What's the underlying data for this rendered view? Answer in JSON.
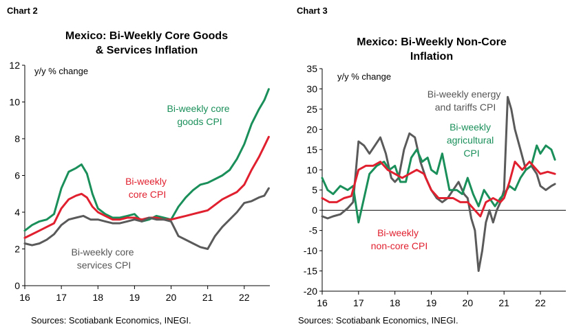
{
  "chart_data": [
    {
      "type": "line",
      "panel_label": "Chart 2",
      "title_line1": "Mexico: Bi-Weekly Core Goods",
      "title_line2": "& Services Inflation",
      "unit_label": "y/y % change",
      "source": "Sources: Scotiabank Economics, INEGI.",
      "x_ticks": [
        "16",
        "17",
        "18",
        "19",
        "20",
        "21",
        "22"
      ],
      "x_tick_values": [
        2016,
        2017,
        2018,
        2019,
        2020,
        2021,
        2022
      ],
      "xlim": [
        2016,
        2022.7
      ],
      "y_ticks": [
        "0",
        "2",
        "4",
        "6",
        "8",
        "10",
        "12"
      ],
      "ylim": [
        0,
        12
      ],
      "series": [
        {
          "name": "Bi-weekly core goods CPI",
          "label_lines": [
            "Bi-weekly core",
            "goods CPI"
          ],
          "color": "#1a8f5a",
          "x": [
            2016.0,
            2016.2,
            2016.4,
            2016.6,
            2016.8,
            2017.0,
            2017.2,
            2017.4,
            2017.55,
            2017.7,
            2017.85,
            2018.0,
            2018.2,
            2018.4,
            2018.6,
            2018.8,
            2019.0,
            2019.2,
            2019.4,
            2019.6,
            2019.8,
            2020.0,
            2020.2,
            2020.4,
            2020.6,
            2020.8,
            2021.0,
            2021.2,
            2021.4,
            2021.6,
            2021.8,
            2022.0,
            2022.2,
            2022.4,
            2022.55,
            2022.67
          ],
          "y": [
            3.0,
            3.3,
            3.5,
            3.6,
            3.9,
            5.3,
            6.2,
            6.4,
            6.6,
            6.1,
            5.0,
            4.2,
            3.9,
            3.7,
            3.7,
            3.8,
            3.9,
            3.5,
            3.6,
            3.8,
            3.7,
            3.6,
            4.3,
            4.8,
            5.2,
            5.5,
            5.6,
            5.8,
            6.0,
            6.3,
            6.9,
            7.7,
            8.8,
            9.6,
            10.1,
            10.7
          ]
        },
        {
          "name": "Bi-weekly core CPI",
          "label_lines": [
            "Bi-weekly",
            "core CPI"
          ],
          "color": "#e0202f",
          "x": [
            2016.0,
            2016.2,
            2016.4,
            2016.6,
            2016.8,
            2017.0,
            2017.2,
            2017.4,
            2017.55,
            2017.7,
            2017.85,
            2018.0,
            2018.2,
            2018.4,
            2018.6,
            2018.8,
            2019.0,
            2019.2,
            2019.4,
            2019.6,
            2019.8,
            2020.0,
            2020.2,
            2020.4,
            2020.6,
            2020.8,
            2021.0,
            2021.2,
            2021.4,
            2021.6,
            2021.8,
            2022.0,
            2022.2,
            2022.4,
            2022.55,
            2022.67
          ],
          "y": [
            2.6,
            2.8,
            3.0,
            3.2,
            3.4,
            4.2,
            4.7,
            4.9,
            5.0,
            4.8,
            4.3,
            4.0,
            3.8,
            3.6,
            3.6,
            3.7,
            3.7,
            3.6,
            3.7,
            3.7,
            3.6,
            3.6,
            3.7,
            3.8,
            3.9,
            4.0,
            4.1,
            4.4,
            4.7,
            4.9,
            5.1,
            5.5,
            6.3,
            7.0,
            7.6,
            8.1
          ]
        },
        {
          "name": "Bi-weekly core services CPI",
          "label_lines": [
            "Bi-weekly core",
            "services CPI"
          ],
          "color": "#5a5a5a",
          "x": [
            2016.0,
            2016.2,
            2016.4,
            2016.6,
            2016.8,
            2017.0,
            2017.2,
            2017.4,
            2017.6,
            2017.8,
            2018.0,
            2018.2,
            2018.4,
            2018.6,
            2018.8,
            2019.0,
            2019.2,
            2019.4,
            2019.6,
            2019.8,
            2020.0,
            2020.2,
            2020.4,
            2020.6,
            2020.8,
            2021.0,
            2021.2,
            2021.4,
            2021.6,
            2021.8,
            2022.0,
            2022.2,
            2022.4,
            2022.55,
            2022.67
          ],
          "y": [
            2.3,
            2.2,
            2.3,
            2.5,
            2.8,
            3.3,
            3.6,
            3.7,
            3.8,
            3.6,
            3.6,
            3.5,
            3.4,
            3.4,
            3.5,
            3.6,
            3.5,
            3.7,
            3.6,
            3.6,
            3.5,
            2.7,
            2.5,
            2.3,
            2.1,
            2.0,
            2.7,
            3.2,
            3.6,
            4.0,
            4.5,
            4.6,
            4.8,
            4.9,
            5.3
          ]
        }
      ]
    },
    {
      "type": "line",
      "panel_label": "Chart 3",
      "title_line1": "Mexico: Bi-Weekly Non-Core",
      "title_line2": "Inflation",
      "unit_label": "y/y % change",
      "source": "Sources: Scotiabank Economics, INEGI.",
      "x_ticks": [
        "16",
        "17",
        "18",
        "19",
        "20",
        "21",
        "22"
      ],
      "x_tick_values": [
        2016,
        2017,
        2018,
        2019,
        2020,
        2021,
        2022
      ],
      "xlim": [
        2016,
        2022.7
      ],
      "y_ticks": [
        "-20",
        "-15",
        "-10",
        "-5",
        "0",
        "5",
        "10",
        "15",
        "20",
        "25",
        "30",
        "35"
      ],
      "ylim": [
        -20,
        35
      ],
      "series": [
        {
          "name": "Bi-weekly energy and tariffs CPI",
          "label_lines": [
            "Bi-weekly energy",
            "and tariffs CPI"
          ],
          "color": "#5a5a5a",
          "x": [
            2016.0,
            2016.15,
            2016.3,
            2016.5,
            2016.7,
            2016.85,
            2017.0,
            2017.15,
            2017.3,
            2017.45,
            2017.6,
            2017.75,
            2017.9,
            2018.0,
            2018.1,
            2018.25,
            2018.4,
            2018.55,
            2018.7,
            2018.85,
            2019.0,
            2019.15,
            2019.3,
            2019.45,
            2019.6,
            2019.75,
            2019.9,
            2020.0,
            2020.1,
            2020.2,
            2020.3,
            2020.4,
            2020.5,
            2020.6,
            2020.7,
            2020.8,
            2020.9,
            2021.0,
            2021.1,
            2021.2,
            2021.3,
            2021.45,
            2021.6,
            2021.75,
            2021.9,
            2022.0,
            2022.15,
            2022.3,
            2022.4
          ],
          "y": [
            -1.5,
            -2.0,
            -1.5,
            -1.0,
            0.5,
            2.0,
            17.0,
            16.0,
            14.0,
            16.0,
            18.0,
            14.0,
            8.0,
            7.0,
            8.0,
            15.0,
            19.0,
            18.0,
            12.0,
            8.0,
            5.0,
            3.0,
            2.0,
            3.0,
            5.0,
            7.0,
            4.0,
            3.0,
            -2.0,
            -5.0,
            -15.0,
            -10.0,
            -3.0,
            0.0,
            -3.0,
            0.0,
            2.0,
            5.0,
            28.0,
            25.0,
            20.0,
            15.0,
            10.0,
            11.0,
            9.0,
            6.0,
            5.0,
            6.0,
            6.5
          ]
        },
        {
          "name": "Bi-weekly agricultural CPI",
          "label_lines": [
            "Bi-weekly",
            "agricultural",
            "CPI"
          ],
          "color": "#1a8f5a",
          "x": [
            2016.0,
            2016.15,
            2016.3,
            2016.5,
            2016.7,
            2016.85,
            2017.0,
            2017.15,
            2017.3,
            2017.5,
            2017.7,
            2017.85,
            2018.0,
            2018.15,
            2018.3,
            2018.45,
            2018.6,
            2018.75,
            2018.9,
            2019.0,
            2019.15,
            2019.3,
            2019.5,
            2019.7,
            2019.85,
            2020.0,
            2020.15,
            2020.3,
            2020.45,
            2020.6,
            2020.75,
            2020.9,
            2021.0,
            2021.15,
            2021.3,
            2021.45,
            2021.6,
            2021.75,
            2021.9,
            2022.0,
            2022.15,
            2022.3,
            2022.4
          ],
          "y": [
            8.0,
            5.0,
            4.0,
            6.0,
            5.0,
            6.0,
            -3.0,
            3.0,
            9.0,
            11.0,
            12.0,
            10.0,
            11.0,
            7.0,
            7.0,
            13.0,
            15.0,
            12.0,
            13.0,
            10.0,
            9.0,
            14.0,
            5.0,
            5.0,
            4.0,
            8.0,
            4.0,
            1.0,
            5.0,
            3.0,
            1.0,
            3.0,
            4.0,
            6.0,
            5.0,
            8.0,
            10.0,
            11.0,
            16.0,
            14.0,
            16.0,
            15.0,
            12.5
          ]
        },
        {
          "name": "Bi-weekly non-core CPI",
          "label_lines": [
            "Bi-weekly",
            "non-core CPI"
          ],
          "color": "#e0202f",
          "x": [
            2016.0,
            2016.2,
            2016.4,
            2016.6,
            2016.8,
            2017.0,
            2017.2,
            2017.4,
            2017.6,
            2017.8,
            2018.0,
            2018.2,
            2018.4,
            2018.6,
            2018.8,
            2019.0,
            2019.2,
            2019.4,
            2019.6,
            2019.8,
            2020.0,
            2020.2,
            2020.35,
            2020.5,
            2020.7,
            2020.9,
            2021.0,
            2021.15,
            2021.3,
            2021.5,
            2021.7,
            2021.9,
            2022.0,
            2022.2,
            2022.4
          ],
          "y": [
            3.0,
            2.0,
            2.0,
            3.0,
            3.5,
            10.0,
            11.0,
            11.0,
            12.0,
            10.0,
            9.0,
            8.0,
            9.0,
            10.0,
            9.0,
            5.0,
            3.0,
            3.0,
            3.0,
            2.0,
            2.0,
            0.0,
            -1.5,
            2.0,
            3.0,
            2.0,
            3.0,
            7.0,
            12.0,
            10.0,
            12.0,
            10.0,
            9.0,
            9.5,
            9.0
          ]
        }
      ]
    }
  ]
}
